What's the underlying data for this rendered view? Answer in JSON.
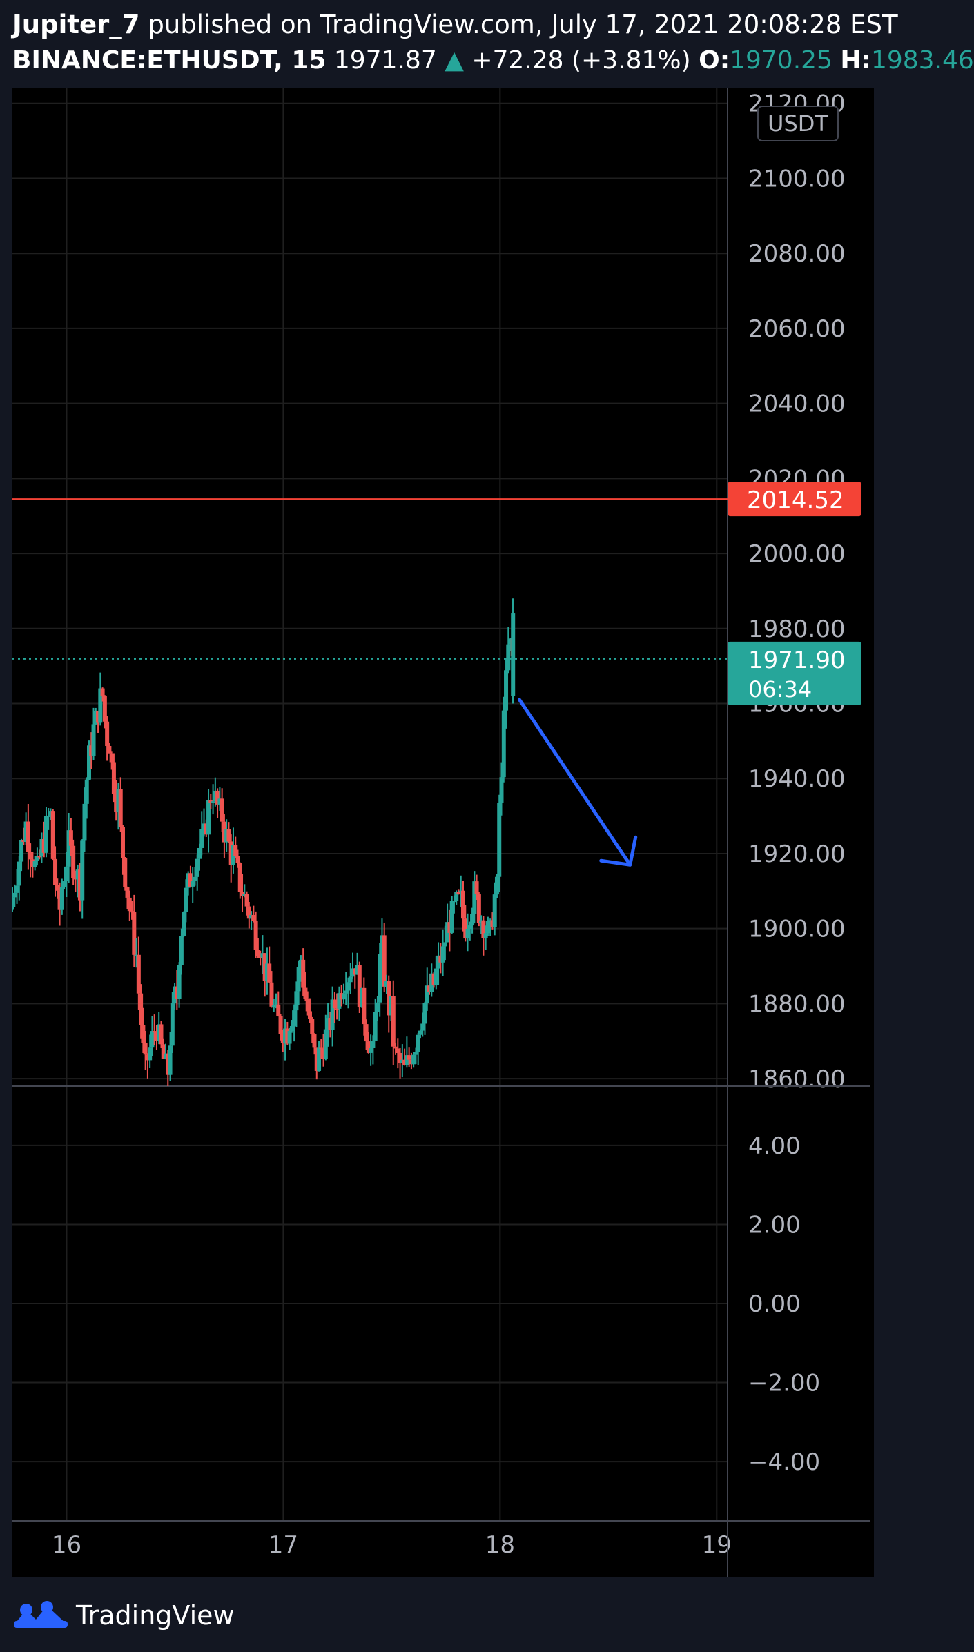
{
  "header": {
    "author": "Jupiter_7",
    "published": "published on TradingView.com, July 17, 2021 20:08:28 EST",
    "symbol": "BINANCE:ETHUSDT, 15",
    "last_price": "1971.87",
    "change": "+72.28 (+3.81%)",
    "open_label": "O:",
    "open_value": "1970.25",
    "high_label": "H:",
    "high_value": "1983.46"
  },
  "footer": {
    "brand": "TradingView",
    "logo_icon": "tradingview-logo-icon"
  },
  "chart_data": {
    "type": "candlestick",
    "title": "BINANCE:ETHUSDT, 15",
    "currency_label": "USDT",
    "x_ticks": [
      "16",
      "17",
      "18",
      "19"
    ],
    "x_tick_positions": [
      16,
      17,
      18,
      19
    ],
    "xlim": [
      15.75,
      19.05
    ],
    "price_panel": {
      "ylim": [
        1858,
        2124
      ],
      "y_ticks": [
        "2120.00",
        "2100.00",
        "2080.00",
        "2060.00",
        "2040.00",
        "2020.00",
        "2000.00",
        "1980.00",
        "1960.00",
        "1940.00",
        "1920.00",
        "1900.00",
        "1880.00",
        "1860.00"
      ],
      "tick_values": [
        2120,
        2100,
        2080,
        2060,
        2040,
        2020,
        2000,
        1980,
        1960,
        1940,
        1920,
        1900,
        1880,
        1860
      ]
    },
    "lower_panel": {
      "ylim": [
        -5.5,
        5.5
      ],
      "y_ticks": [
        "4.00",
        "2.00",
        "0.00",
        "−2.00",
        "−4.00"
      ],
      "tick_values": [
        4,
        2,
        0,
        -2,
        -4
      ]
    },
    "horizontal_line": {
      "price": 2014.52,
      "label": "2014.52",
      "color": "#f44336"
    },
    "last_price_line": {
      "price": 1971.9,
      "label": "1971.90",
      "countdown": "06:34",
      "color": "#26a69a"
    },
    "arrow": {
      "x1": 18.09,
      "y1": 1961,
      "x2": 18.6,
      "y2": 1917,
      "color": "#2962ff"
    },
    "colors": {
      "up": "#26a69a",
      "down": "#ef5350",
      "grid": "#1f1f1f",
      "axis_text": "#b2b5be"
    },
    "price_path": [
      [
        15.75,
        1905
      ],
      [
        15.82,
        1928
      ],
      [
        15.87,
        1915
      ],
      [
        15.93,
        1930
      ],
      [
        15.97,
        1905
      ],
      [
        16.02,
        1922
      ],
      [
        16.07,
        1912
      ],
      [
        16.1,
        1940
      ],
      [
        16.14,
        1955
      ],
      [
        16.17,
        1962
      ],
      [
        16.2,
        1950
      ],
      [
        16.24,
        1935
      ],
      [
        16.29,
        1910
      ],
      [
        16.33,
        1893
      ],
      [
        16.37,
        1862
      ],
      [
        16.42,
        1874
      ],
      [
        16.47,
        1862
      ],
      [
        16.51,
        1882
      ],
      [
        16.55,
        1906
      ],
      [
        16.6,
        1918
      ],
      [
        16.64,
        1924
      ],
      [
        16.68,
        1937
      ],
      [
        16.72,
        1930
      ],
      [
        16.77,
        1920
      ],
      [
        16.81,
        1912
      ],
      [
        16.86,
        1903
      ],
      [
        16.9,
        1896
      ],
      [
        16.94,
        1885
      ],
      [
        16.98,
        1875
      ],
      [
        17.02,
        1873
      ],
      [
        17.06,
        1879
      ],
      [
        17.09,
        1892
      ],
      [
        17.12,
        1878
      ],
      [
        17.16,
        1864
      ],
      [
        17.21,
        1872
      ],
      [
        17.26,
        1882
      ],
      [
        17.3,
        1888
      ],
      [
        17.34,
        1891
      ],
      [
        17.38,
        1877
      ],
      [
        17.42,
        1866
      ],
      [
        17.46,
        1894
      ],
      [
        17.5,
        1878
      ],
      [
        17.53,
        1865
      ],
      [
        17.57,
        1862
      ],
      [
        17.62,
        1870
      ],
      [
        17.66,
        1880
      ],
      [
        17.7,
        1885
      ],
      [
        17.74,
        1893
      ],
      [
        17.78,
        1903
      ],
      [
        17.82,
        1907
      ],
      [
        17.85,
        1901
      ],
      [
        17.89,
        1909
      ],
      [
        17.93,
        1902
      ],
      [
        17.96,
        1898
      ],
      [
        17.99,
        1910
      ],
      [
        18.01,
        1938
      ],
      [
        18.03,
        1965
      ],
      [
        18.05,
        1975
      ],
      [
        18.06,
        1971.9
      ]
    ]
  }
}
